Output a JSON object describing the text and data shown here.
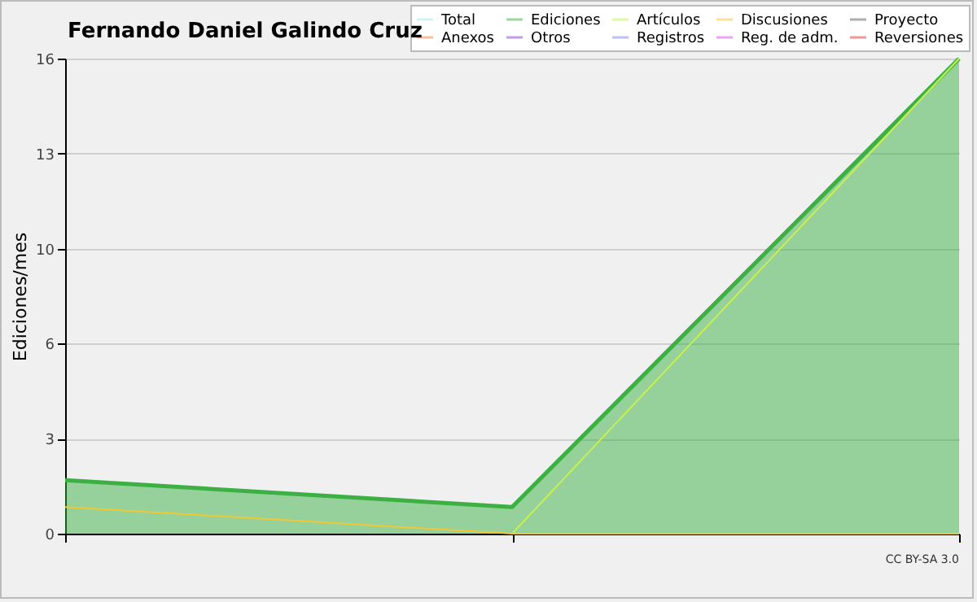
{
  "chart_data": {
    "type": "line",
    "title": "Fernando Daniel Galindo Cruz",
    "ylabel": "Ediciones/mes",
    "categories": [
      null,
      null,
      null
    ],
    "series": [
      {
        "name": "Total",
        "color": "#a8e4e4",
        "values": [
          null,
          null,
          null
        ]
      },
      {
        "name": "Ediciones",
        "type": "area",
        "color": "#3cb043",
        "values": [
          1.8,
          0.9,
          16
        ]
      },
      {
        "name": "Artículos",
        "color": "#c8f050",
        "values": [
          null,
          0,
          16
        ]
      },
      {
        "name": "Discusiones",
        "color": "#f0c830",
        "values": [
          0.9,
          0,
          0
        ]
      },
      {
        "name": "Proyecto",
        "color": "#606060",
        "values": [
          null,
          null,
          null
        ]
      },
      {
        "name": "Anexos",
        "color": "#f08040",
        "values": [
          null,
          null,
          null
        ]
      },
      {
        "name": "Otros",
        "color": "#8040d0",
        "values": [
          null,
          null,
          null
        ]
      },
      {
        "name": "Registros",
        "color": "#8080f0",
        "values": [
          null,
          null,
          null
        ]
      },
      {
        "name": "Reg. de adm.",
        "color": "#d050e0",
        "values": [
          null,
          null,
          null
        ]
      },
      {
        "name": "Reversiones",
        "color": "#e03030",
        "values": [
          null,
          null,
          null
        ]
      }
    ],
    "ylim": [
      0,
      16
    ],
    "yticks": [
      0,
      {
        "value": 3.2,
        "label": "3"
      },
      {
        "value": 6.4,
        "label": "6"
      },
      {
        "value": 9.6,
        "label": "10"
      },
      {
        "value": 12.8,
        "label": "13"
      },
      16
    ],
    "grid": "y",
    "legend": "top right",
    "annotations": [
      "CC BY-SA 3.0"
    ]
  }
}
